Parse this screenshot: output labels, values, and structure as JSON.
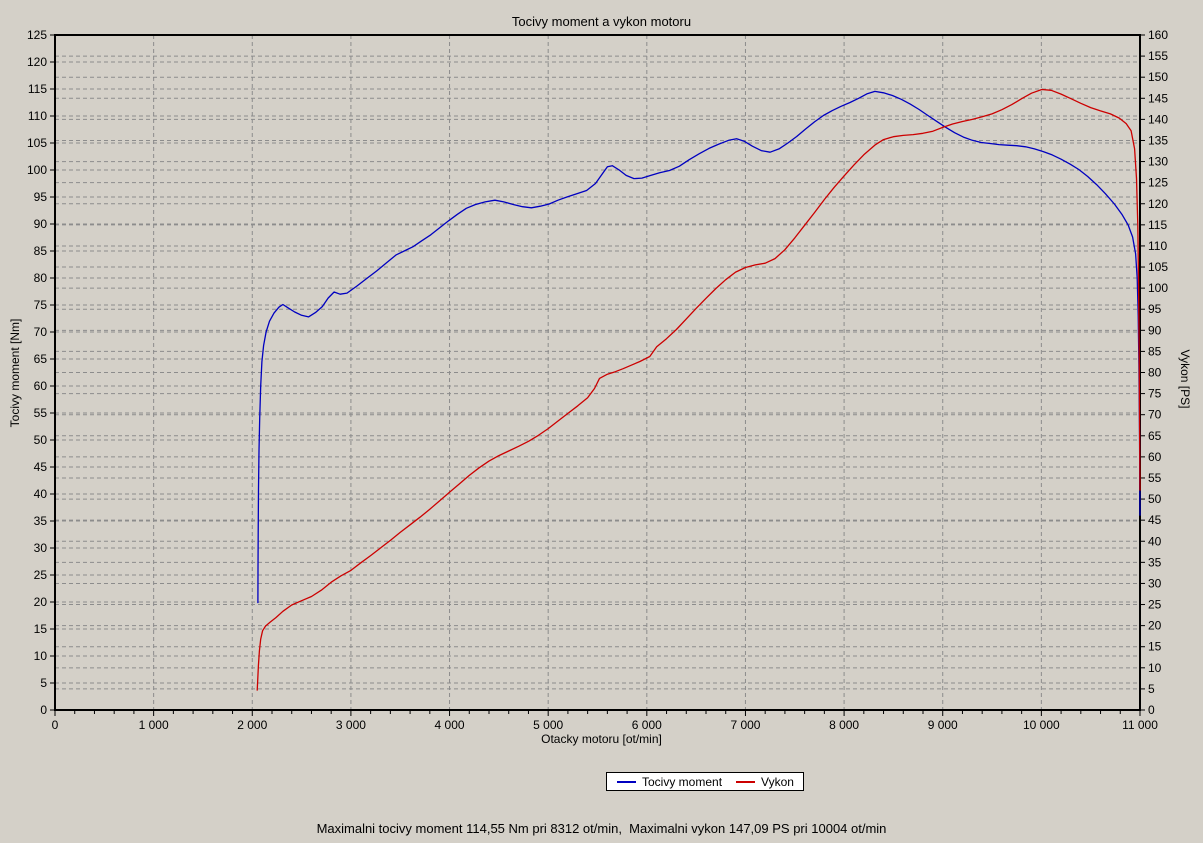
{
  "title": "Tocivy moment a vykon motoru",
  "status_bar": {
    "text": "Maximalni tocivy moment 114,55 Nm pri 8312 ot/min,  Maximalni vykon 147,09 PS pri 10004 ot/min"
  },
  "legend": {
    "items": [
      {
        "label": "Tocivy moment",
        "color": "#0000c0"
      },
      {
        "label": "Vykon",
        "color": "#cc0000"
      }
    ]
  },
  "colors": {
    "background": "#d4d0c8",
    "grid": "#8c8c8c",
    "axis": "#000000",
    "torque_line": "#0000c0",
    "power_line": "#cc0000"
  },
  "chart_data": {
    "type": "line",
    "title": "Tocivy moment a vykon motoru",
    "xlabel": "Otacky motoru [ot/min]",
    "ylabel_left": "Tocivy moment [Nm]",
    "ylabel_right": "Vykon [PS]",
    "xlim": [
      0,
      11000
    ],
    "ylim_left": [
      0,
      125
    ],
    "ylim_right": [
      0,
      160
    ],
    "grid": true,
    "legend_position": "bottom-center",
    "x_tick_values": [
      0,
      1000,
      2000,
      3000,
      4000,
      5000,
      6000,
      7000,
      8000,
      9000,
      10000,
      11000
    ],
    "x_tick_labels": [
      "0",
      "1 000",
      "2 000",
      "3 000",
      "4 000",
      "5 000",
      "6 000",
      "7 000",
      "8 000",
      "9 000",
      "10 000",
      "11 000"
    ],
    "x_minor_tick_step": 200,
    "y_left_ticks": [
      0,
      5,
      10,
      15,
      20,
      25,
      30,
      35,
      40,
      45,
      50,
      55,
      60,
      65,
      70,
      75,
      80,
      85,
      90,
      95,
      100,
      105,
      110,
      115,
      120,
      125
    ],
    "y_right_ticks": [
      0,
      5,
      10,
      15,
      20,
      25,
      30,
      35,
      40,
      45,
      50,
      55,
      60,
      65,
      70,
      75,
      80,
      85,
      90,
      95,
      100,
      105,
      110,
      115,
      120,
      125,
      130,
      135,
      140,
      145,
      150,
      155,
      160
    ],
    "maxima": {
      "max_torque_nm": 114.55,
      "max_torque_rpm": 8312,
      "max_power_ps": 147.09,
      "max_power_rpm": 10004
    },
    "series": [
      {
        "name": "Tocivy moment",
        "axis": "left",
        "unit": "Nm",
        "color": "#0000c0",
        "points": [
          [
            2057,
            19.8
          ],
          [
            2058,
            26
          ],
          [
            2060,
            33
          ],
          [
            2063,
            41
          ],
          [
            2068,
            48
          ],
          [
            2075,
            54
          ],
          [
            2085,
            60
          ],
          [
            2098,
            64.5
          ],
          [
            2115,
            67.5
          ],
          [
            2140,
            70
          ],
          [
            2175,
            72
          ],
          [
            2220,
            73.5
          ],
          [
            2270,
            74.6
          ],
          [
            2310,
            75.1
          ],
          [
            2360,
            74.5
          ],
          [
            2430,
            73.7
          ],
          [
            2500,
            73.1
          ],
          [
            2570,
            72.8
          ],
          [
            2640,
            73.6
          ],
          [
            2710,
            74.7
          ],
          [
            2770,
            76.3
          ],
          [
            2830,
            77.4
          ],
          [
            2890,
            77.0
          ],
          [
            2960,
            77.2
          ],
          [
            3060,
            78.5
          ],
          [
            3160,
            79.9
          ],
          [
            3260,
            81.3
          ],
          [
            3360,
            82.8
          ],
          [
            3460,
            84.3
          ],
          [
            3540,
            85.0
          ],
          [
            3630,
            85.8
          ],
          [
            3720,
            86.9
          ],
          [
            3810,
            88.0
          ],
          [
            3900,
            89.3
          ],
          [
            3990,
            90.6
          ],
          [
            4080,
            91.8
          ],
          [
            4170,
            92.9
          ],
          [
            4260,
            93.6
          ],
          [
            4360,
            94.1
          ],
          [
            4460,
            94.4
          ],
          [
            4550,
            94.1
          ],
          [
            4650,
            93.6
          ],
          [
            4740,
            93.2
          ],
          [
            4830,
            93.0
          ],
          [
            4920,
            93.3
          ],
          [
            5010,
            93.7
          ],
          [
            5100,
            94.4
          ],
          [
            5190,
            95.0
          ],
          [
            5290,
            95.6
          ],
          [
            5390,
            96.2
          ],
          [
            5480,
            97.5
          ],
          [
            5550,
            99.3
          ],
          [
            5600,
            100.6
          ],
          [
            5650,
            100.8
          ],
          [
            5720,
            100.0
          ],
          [
            5790,
            99.0
          ],
          [
            5870,
            98.4
          ],
          [
            5950,
            98.5
          ],
          [
            6040,
            99.0
          ],
          [
            6130,
            99.5
          ],
          [
            6230,
            99.9
          ],
          [
            6330,
            100.7
          ],
          [
            6430,
            101.9
          ],
          [
            6530,
            103.0
          ],
          [
            6630,
            104.0
          ],
          [
            6730,
            104.8
          ],
          [
            6830,
            105.5
          ],
          [
            6910,
            105.8
          ],
          [
            6990,
            105.3
          ],
          [
            7070,
            104.4
          ],
          [
            7160,
            103.6
          ],
          [
            7250,
            103.3
          ],
          [
            7340,
            103.9
          ],
          [
            7430,
            105.0
          ],
          [
            7520,
            106.2
          ],
          [
            7610,
            107.6
          ],
          [
            7700,
            108.9
          ],
          [
            7790,
            110.1
          ],
          [
            7880,
            111.0
          ],
          [
            7970,
            111.8
          ],
          [
            8060,
            112.5
          ],
          [
            8150,
            113.3
          ],
          [
            8230,
            114.1
          ],
          [
            8312,
            114.55
          ],
          [
            8400,
            114.3
          ],
          [
            8490,
            113.8
          ],
          [
            8580,
            113.1
          ],
          [
            8670,
            112.2
          ],
          [
            8760,
            111.2
          ],
          [
            8850,
            110.1
          ],
          [
            8940,
            109.0
          ],
          [
            9030,
            107.9
          ],
          [
            9120,
            106.9
          ],
          [
            9210,
            106.1
          ],
          [
            9300,
            105.5
          ],
          [
            9390,
            105.1
          ],
          [
            9480,
            104.9
          ],
          [
            9570,
            104.7
          ],
          [
            9660,
            104.6
          ],
          [
            9750,
            104.5
          ],
          [
            9840,
            104.3
          ],
          [
            9930,
            103.9
          ],
          [
            10020,
            103.4
          ],
          [
            10110,
            102.8
          ],
          [
            10200,
            102.0
          ],
          [
            10290,
            101.1
          ],
          [
            10380,
            100.1
          ],
          [
            10470,
            98.8
          ],
          [
            10560,
            97.3
          ],
          [
            10650,
            95.6
          ],
          [
            10740,
            93.7
          ],
          [
            10820,
            91.7
          ],
          [
            10880,
            89.8
          ],
          [
            10925,
            87.6
          ],
          [
            10955,
            84.5
          ],
          [
            10972,
            80
          ],
          [
            10982,
            73
          ],
          [
            10989,
            64
          ],
          [
            10994,
            54
          ],
          [
            10998,
            43
          ],
          [
            11000,
            36
          ]
        ]
      },
      {
        "name": "Vykon",
        "axis": "right",
        "unit": "PS",
        "color": "#cc0000",
        "points": [
          [
            2050,
            4.6
          ],
          [
            2055,
            7
          ],
          [
            2062,
            10.5
          ],
          [
            2072,
            14
          ],
          [
            2085,
            16.8
          ],
          [
            2105,
            18.8
          ],
          [
            2135,
            19.9
          ],
          [
            2180,
            20.8
          ],
          [
            2240,
            21.9
          ],
          [
            2310,
            23.4
          ],
          [
            2400,
            24.9
          ],
          [
            2500,
            25.9
          ],
          [
            2600,
            26.9
          ],
          [
            2700,
            28.4
          ],
          [
            2800,
            30.3
          ],
          [
            2900,
            31.8
          ],
          [
            3000,
            33.1
          ],
          [
            3100,
            34.9
          ],
          [
            3200,
            36.6
          ],
          [
            3300,
            38.4
          ],
          [
            3400,
            40.2
          ],
          [
            3500,
            42.1
          ],
          [
            3600,
            43.9
          ],
          [
            3700,
            45.7
          ],
          [
            3800,
            47.6
          ],
          [
            3900,
            49.6
          ],
          [
            4000,
            51.6
          ],
          [
            4100,
            53.6
          ],
          [
            4200,
            55.6
          ],
          [
            4300,
            57.4
          ],
          [
            4400,
            59.0
          ],
          [
            4500,
            60.3
          ],
          [
            4600,
            61.4
          ],
          [
            4700,
            62.5
          ],
          [
            4800,
            63.7
          ],
          [
            4900,
            65.1
          ],
          [
            5000,
            66.7
          ],
          [
            5100,
            68.5
          ],
          [
            5200,
            70.3
          ],
          [
            5300,
            72.1
          ],
          [
            5400,
            74.0
          ],
          [
            5470,
            76.2
          ],
          [
            5520,
            78.6
          ],
          [
            5600,
            79.6
          ],
          [
            5680,
            80.2
          ],
          [
            5760,
            80.9
          ],
          [
            5840,
            81.7
          ],
          [
            5930,
            82.6
          ],
          [
            6030,
            83.8
          ],
          [
            6100,
            86.1
          ],
          [
            6200,
            88.0
          ],
          [
            6300,
            90.2
          ],
          [
            6400,
            92.7
          ],
          [
            6500,
            95.2
          ],
          [
            6600,
            97.6
          ],
          [
            6700,
            99.9
          ],
          [
            6800,
            102.0
          ],
          [
            6900,
            103.8
          ],
          [
            7000,
            104.9
          ],
          [
            7100,
            105.5
          ],
          [
            7200,
            105.9
          ],
          [
            7300,
            107.0
          ],
          [
            7400,
            109.1
          ],
          [
            7500,
            111.9
          ],
          [
            7600,
            114.9
          ],
          [
            7700,
            117.9
          ],
          [
            7800,
            121.0
          ],
          [
            7900,
            123.9
          ],
          [
            8000,
            126.6
          ],
          [
            8100,
            129.2
          ],
          [
            8200,
            131.6
          ],
          [
            8312,
            133.9
          ],
          [
            8400,
            135.2
          ],
          [
            8500,
            135.9
          ],
          [
            8600,
            136.2
          ],
          [
            8700,
            136.4
          ],
          [
            8800,
            136.7
          ],
          [
            8900,
            137.2
          ],
          [
            9000,
            138.1
          ],
          [
            9100,
            138.9
          ],
          [
            9200,
            139.5
          ],
          [
            9300,
            140.0
          ],
          [
            9400,
            140.6
          ],
          [
            9500,
            141.3
          ],
          [
            9600,
            142.3
          ],
          [
            9700,
            143.5
          ],
          [
            9800,
            144.9
          ],
          [
            9900,
            146.2
          ],
          [
            10004,
            147.09
          ],
          [
            10100,
            146.9
          ],
          [
            10200,
            146.0
          ],
          [
            10300,
            144.9
          ],
          [
            10400,
            143.8
          ],
          [
            10500,
            142.8
          ],
          [
            10600,
            142.0
          ],
          [
            10700,
            141.3
          ],
          [
            10790,
            140.3
          ],
          [
            10860,
            139.0
          ],
          [
            10910,
            137.3
          ],
          [
            10945,
            133
          ],
          [
            10965,
            126
          ],
          [
            10978,
            115
          ],
          [
            10986,
            100
          ],
          [
            10992,
            83
          ],
          [
            10996,
            66
          ],
          [
            11000,
            52
          ]
        ]
      }
    ]
  }
}
